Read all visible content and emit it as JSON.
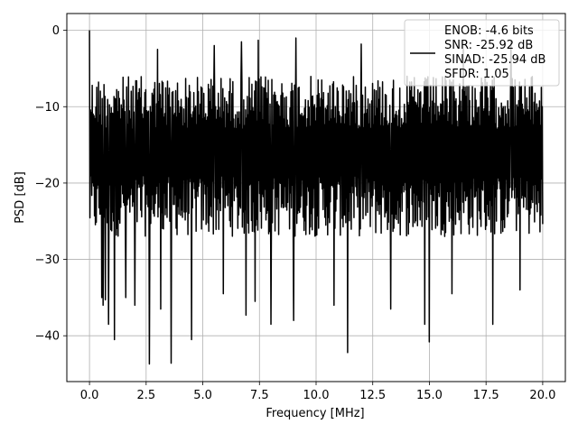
{
  "chart_data": {
    "type": "line",
    "xlabel": "Frequency [MHz]",
    "ylabel": "PSD [dB]",
    "xlim": [
      -1.0,
      21.0
    ],
    "ylim": [
      -46,
      2.2
    ],
    "x_ticks": [
      0.0,
      2.5,
      5.0,
      7.5,
      10.0,
      12.5,
      15.0,
      17.5,
      20.0
    ],
    "x_tick_labels": [
      "0.0",
      "2.5",
      "5.0",
      "7.5",
      "10.0",
      "12.5",
      "15.0",
      "17.5",
      "20.0"
    ],
    "y_ticks": [
      0,
      -10,
      -20,
      -30,
      -40
    ],
    "y_tick_labels": [
      "0",
      "−10",
      "−20",
      "−30",
      "−40"
    ],
    "grid": true,
    "legend_position": "top-right",
    "legend_lines": [
      "ENOB: -4.6 bits",
      "SNR: -25.92 dB",
      "SINAD: -25.94 dB",
      "SFDR: 1.05"
    ],
    "series": [
      {
        "color": "#000000",
        "x_range": [
          0.0,
          20.0
        ],
        "points": 1000,
        "description_values": {
          "peak": 0.0,
          "upper_envelope_typical": -6.0,
          "lower_envelope_typical": -25.0,
          "dips": [
            [
              0.55,
              -35.0
            ],
            [
              0.6,
              -36.0
            ],
            [
              0.7,
              -35.3
            ],
            [
              0.85,
              -38.5
            ],
            [
              1.1,
              -40.5
            ],
            [
              1.6,
              -35.0
            ],
            [
              2.0,
              -36.0
            ],
            [
              2.65,
              -43.7
            ],
            [
              3.15,
              -36.5
            ],
            [
              3.6,
              -43.6
            ],
            [
              4.5,
              -40.5
            ],
            [
              5.9,
              -34.5
            ],
            [
              6.9,
              -37.3
            ],
            [
              7.3,
              -35.5
            ],
            [
              8.0,
              -38.5
            ],
            [
              9.0,
              -38.0
            ],
            [
              10.8,
              -36.0
            ],
            [
              11.4,
              -42.2
            ],
            [
              13.3,
              -36.5
            ],
            [
              14.8,
              -38.5
            ],
            [
              15.0,
              -40.8
            ],
            [
              16.0,
              -34.5
            ],
            [
              17.8,
              -38.5
            ],
            [
              19.0,
              -34.0
            ]
          ],
          "tall_peaks": [
            [
              0.0,
              0.0
            ],
            [
              3.0,
              -2.5
            ],
            [
              5.5,
              -2.0
            ],
            [
              6.7,
              -1.5
            ],
            [
              7.45,
              -1.3
            ],
            [
              9.1,
              -1.0
            ],
            [
              12.0,
              -1.8
            ],
            [
              16.5,
              -2.5
            ],
            [
              18.6,
              -1.4
            ]
          ]
        }
      }
    ]
  }
}
